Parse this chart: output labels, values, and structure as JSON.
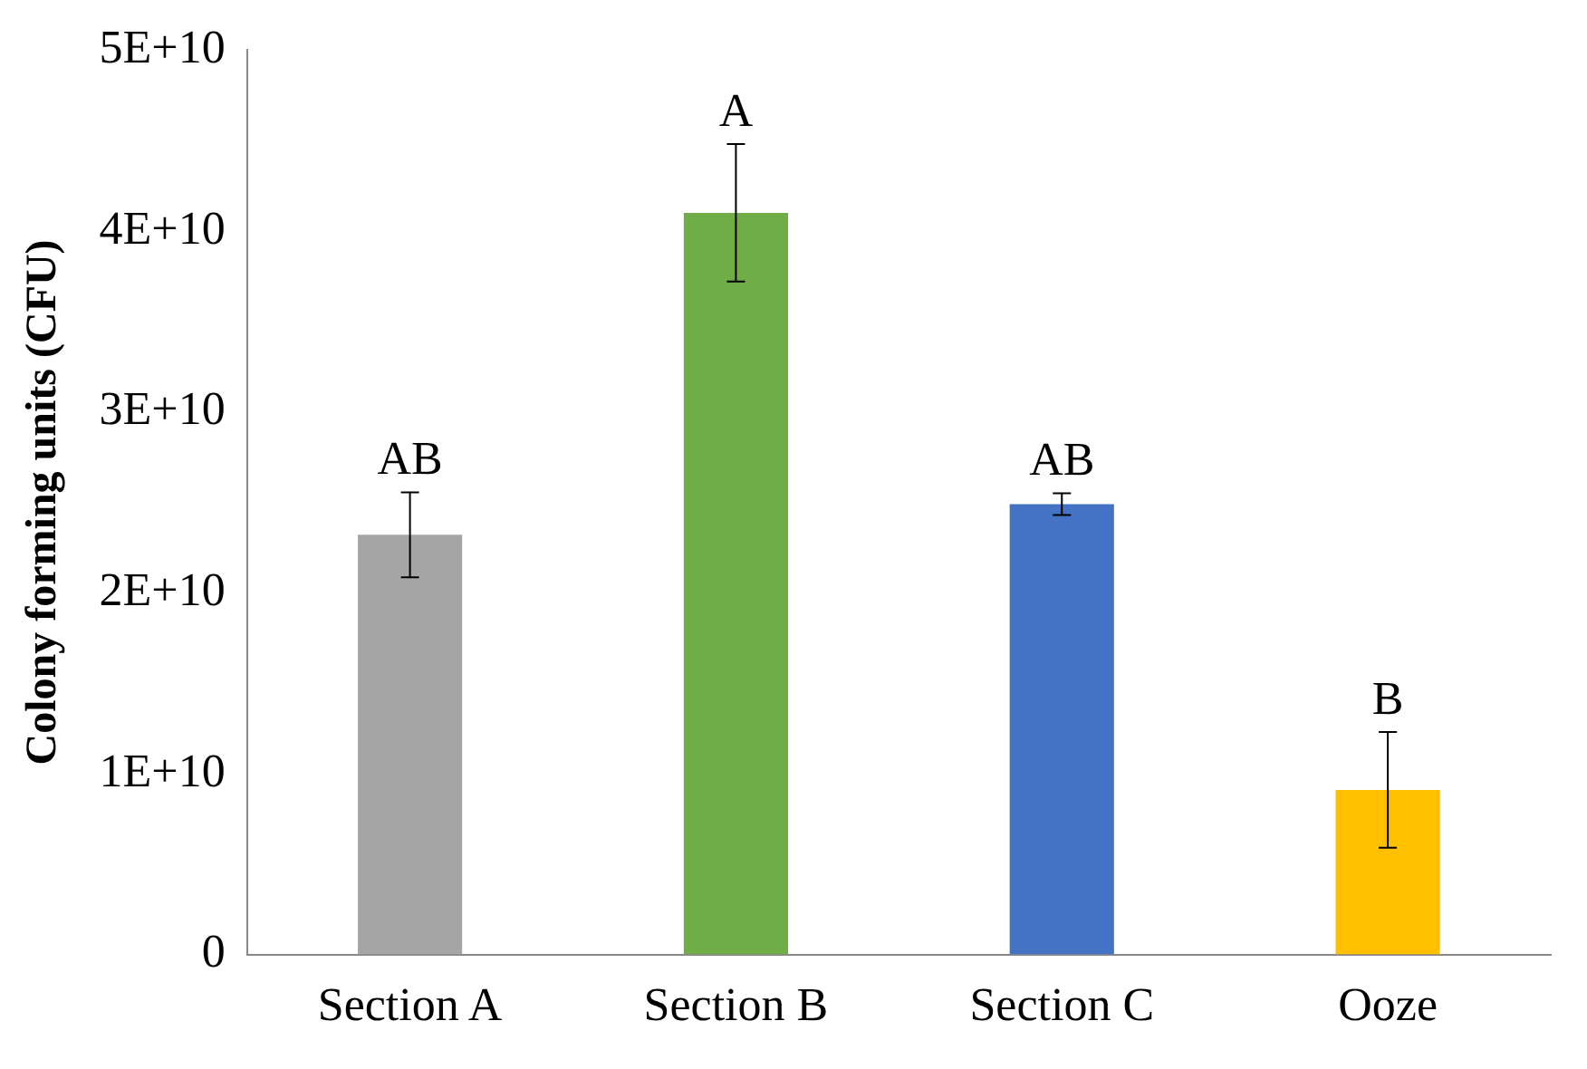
{
  "chart_data": {
    "type": "bar",
    "ylabel": "Colony forming units (CFU)",
    "categories": [
      "Section A",
      "Section B",
      "Section C",
      "Ooze"
    ],
    "values": [
      23200000000,
      41000000000,
      24900000000,
      9100000000
    ],
    "colors": [
      "#a5a5a5",
      "#70ad47",
      "#4472c4",
      "#ffc000"
    ],
    "errors": [
      2350000000,
      3800000000,
      600000000,
      3200000000
    ],
    "ylim": [
      0,
      50000000000
    ],
    "yticks": [
      0,
      {
        "value": 10000000000,
        "label": "1E+10"
      },
      {
        "value": 20000000000,
        "label": "2E+10"
      },
      {
        "value": 30000000000,
        "label": "3E+10"
      },
      {
        "value": 40000000000,
        "label": "4E+10"
      },
      {
        "value": 50000000000,
        "label": "5E+10"
      }
    ],
    "annotations": [
      {
        "text": "AB",
        "x": "Section A",
        "y": 25550000000
      },
      {
        "text": "A",
        "x": "Section B",
        "y": 44800000000
      },
      {
        "text": "AB",
        "x": "Section C",
        "y": 25500000000
      },
      {
        "text": "B",
        "x": "Ooze",
        "y": 12300000000
      }
    ],
    "grid": false,
    "legend": false
  }
}
